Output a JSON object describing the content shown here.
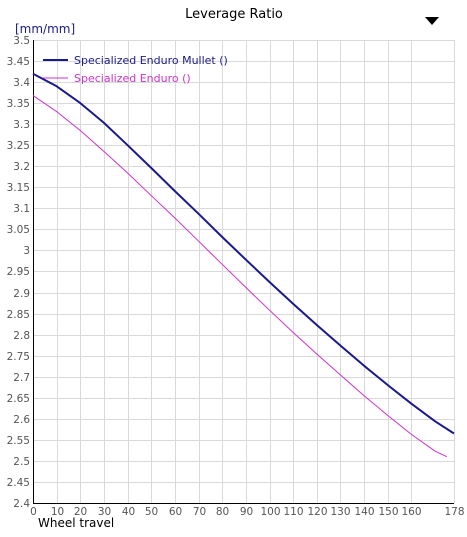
{
  "chart_data": {
    "type": "line",
    "title": "Leverage Ratio",
    "ylabel": "[mm/mm]",
    "xlabel": "Wheel travel",
    "xlim": [
      0,
      178
    ],
    "ylim": [
      2.4,
      3.5
    ],
    "x_ticks": [
      0,
      10,
      20,
      30,
      40,
      50,
      60,
      70,
      80,
      90,
      100,
      110,
      120,
      130,
      140,
      150,
      160,
      178
    ],
    "y_ticks": [
      "2.4",
      "2.45",
      "2.5",
      "2.55",
      "2.6",
      "2.65",
      "2.7",
      "2.75",
      "2.8",
      "2.85",
      "2.9",
      "2.95",
      "3",
      "3.05",
      "3.1",
      "3.15",
      "3.2",
      "3.25",
      "3.3",
      "3.35",
      "3.4",
      "3.45",
      "3.5"
    ],
    "grid": true,
    "legend_position": "top-left",
    "menu_icon": "triangle-down-icon",
    "series": [
      {
        "name": "Specialized Enduro Mullet ()",
        "color": "#1a1a8c",
        "x": [
          0,
          10,
          20,
          30,
          40,
          50,
          60,
          70,
          80,
          90,
          100,
          110,
          120,
          130,
          140,
          150,
          160,
          170,
          178
        ],
        "y": [
          3.42,
          3.39,
          3.35,
          3.303,
          3.25,
          3.196,
          3.141,
          3.087,
          3.032,
          2.978,
          2.925,
          2.873,
          2.823,
          2.774,
          2.726,
          2.68,
          2.636,
          2.594,
          2.565
        ]
      },
      {
        "name": "Specialized Enduro ()",
        "color": "#cc33cc",
        "x": [
          0,
          10,
          20,
          30,
          40,
          50,
          60,
          70,
          80,
          90,
          100,
          110,
          120,
          130,
          140,
          150,
          160,
          170,
          175
        ],
        "y": [
          3.368,
          3.33,
          3.285,
          3.235,
          3.184,
          3.13,
          3.077,
          3.022,
          2.967,
          2.912,
          2.858,
          2.805,
          2.754,
          2.704,
          2.655,
          2.608,
          2.563,
          2.523,
          2.51
        ]
      }
    ]
  }
}
